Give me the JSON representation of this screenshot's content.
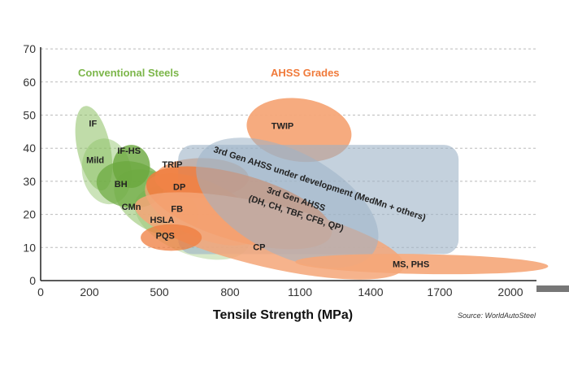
{
  "chart_data": {
    "type": "bubble-region",
    "xlabel": "Tensile Strength (MPa)",
    "ylabel": "",
    "xlim": [
      0,
      2000
    ],
    "ylim": [
      0,
      70
    ],
    "x_ticks": [
      0,
      200,
      500,
      800,
      1100,
      1400,
      1700,
      2000
    ],
    "y_ticks": [
      0,
      10,
      20,
      30,
      40,
      50,
      60,
      70
    ],
    "x_ticks_labels": [
      "0",
      "200",
      "500",
      "800",
      "1100",
      "1400",
      "1700",
      "2000"
    ],
    "y_ticks_labels": [
      "0",
      "10",
      "20",
      "30",
      "40",
      "50",
      "60",
      "70"
    ],
    "group_labels": [
      {
        "text": "Conventional Steels",
        "color": "#7cb64a"
      },
      {
        "text": "AHSS Grades",
        "color": "#f07a3a"
      }
    ],
    "source": "Source: WorldAutoSteel",
    "colors": {
      "conventional": "#8cc063",
      "conventional_dark": "#6aa83d",
      "ahss": "#f5a678",
      "ahss_dark": "#ef7c3d",
      "gen3": "#9db3c6",
      "grid": "#bbbbbb"
    },
    "regions": [
      {
        "name": "IF",
        "group": "conventional",
        "tensile_mpa": [
          150,
          290
        ],
        "elongation_pct": [
          27,
          53
        ]
      },
      {
        "name": "Mild",
        "group": "conventional",
        "tensile_mpa": [
          170,
          380
        ],
        "elongation_pct": [
          23,
          43
        ]
      },
      {
        "name": "IF-HS",
        "group": "conventional",
        "tensile_mpa": [
          300,
          460
        ],
        "elongation_pct": [
          28,
          41
        ]
      },
      {
        "name": "BH",
        "group": "conventional",
        "tensile_mpa": [
          230,
          520
        ],
        "elongation_pct": [
          22,
          36
        ]
      },
      {
        "name": "CMn",
        "group": "conventional",
        "tensile_mpa": [
          290,
          680
        ],
        "elongation_pct": [
          15,
          32
        ]
      },
      {
        "name": "HSLA",
        "group": "conventional",
        "tensile_mpa": [
          380,
          900
        ],
        "elongation_pct": [
          8,
          27
        ]
      },
      {
        "name": "TRIP",
        "group": "ahss",
        "tensile_mpa": [
          480,
          880
        ],
        "elongation_pct": [
          25,
          37
        ]
      },
      {
        "name": "DP",
        "group": "ahss",
        "tensile_mpa": [
          430,
          1250
        ],
        "elongation_pct": [
          12,
          32
        ]
      },
      {
        "name": "FB",
        "group": "ahss",
        "tensile_mpa": [
          420,
          950
        ],
        "elongation_pct": [
          13,
          30
        ]
      },
      {
        "name": "PQS",
        "group": "ahss",
        "tensile_mpa": [
          420,
          680
        ],
        "elongation_pct": [
          9,
          17
        ]
      },
      {
        "name": "CP",
        "group": "ahss",
        "tensile_mpa": [
          380,
          1560
        ],
        "elongation_pct": [
          4,
          23
        ]
      },
      {
        "name": "MS, PHS",
        "group": "ahss",
        "tensile_mpa": [
          1080,
          2160
        ],
        "elongation_pct": [
          2,
          8
        ]
      },
      {
        "name": "TWIP",
        "group": "ahss",
        "tensile_mpa": [
          870,
          1320
        ],
        "elongation_pct": [
          36,
          55
        ]
      },
      {
        "name": "3rd Gen AHSS under development (MedMn + others)",
        "group": "gen3",
        "tensile_mpa": [
          580,
          1780
        ],
        "elongation_pct": [
          8,
          41
        ]
      },
      {
        "name": "3rd Gen AHSS (DH, CH, TBF, CFB, QP)",
        "group": "gen3",
        "tensile_mpa": [
          620,
          1470
        ],
        "elongation_pct": [
          8,
          39
        ]
      }
    ],
    "labels": [
      {
        "text": "IF",
        "tensile": 215,
        "elong": 46.5
      },
      {
        "text": "Mild",
        "tensile": 225,
        "elong": 35.5
      },
      {
        "text": "IF-HS",
        "tensile": 370,
        "elong": 38.3
      },
      {
        "text": "BH",
        "tensile": 335,
        "elong": 28.2
      },
      {
        "text": "CMn",
        "tensile": 380,
        "elong": 21.4
      },
      {
        "text": "HSLA",
        "tensile": 512,
        "elong": 17.4
      },
      {
        "text": "PQS",
        "tensile": 525,
        "elong": 12.6
      },
      {
        "text": "TRIP",
        "tensile": 555,
        "elong": 34.2
      },
      {
        "text": "DP",
        "tensile": 585,
        "elong": 27.4
      },
      {
        "text": "FB",
        "tensile": 575,
        "elong": 20.8
      },
      {
        "text": "CP",
        "tensile": 925,
        "elong": 9.2
      },
      {
        "text": "MS, PHS",
        "tensile": 1575,
        "elong": 4.0
      },
      {
        "text": "TWIP",
        "tensile": 1025,
        "elong": 45.8
      },
      {
        "text": "3rd Gen AHSS under development (MedMn + others)",
        "tensile": 1180,
        "elong": 28.5,
        "angle": 18
      },
      {
        "text": "3rd Gen AHSS",
        "tensile": 1080,
        "elong": 23.8,
        "angle": 18
      },
      {
        "text": "(DH, CH, TBF, CFB, QP)",
        "tensile": 1080,
        "elong": 19.5,
        "angle": 18
      }
    ]
  }
}
